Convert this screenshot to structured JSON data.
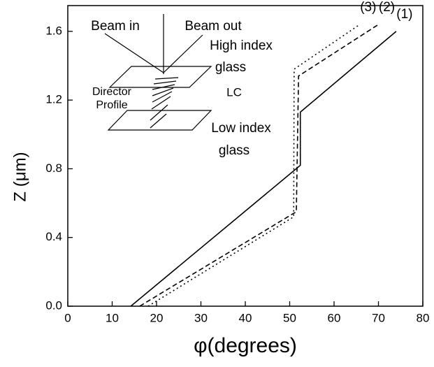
{
  "chart_data": {
    "type": "line",
    "xlabel": "φ(degrees)",
    "ylabel": "Z (μm)",
    "xlim": [
      0,
      80
    ],
    "ylim": [
      0,
      1.75
    ],
    "xticks": [
      0,
      10,
      20,
      30,
      40,
      50,
      60,
      70,
      80
    ],
    "yticks": [
      {
        "value": 0,
        "label": "0.0"
      },
      0.4,
      0.8,
      1.2,
      1.6
    ],
    "series": [
      {
        "name": "(1)",
        "color": "#000000",
        "dash": "solid",
        "x": [
          14.2,
          52.4,
          52.4,
          74.0
        ],
        "values": [
          0,
          0.82,
          1.13,
          1.6
        ]
      },
      {
        "name": "(2)",
        "color": "#000000",
        "dash": "dashed",
        "x": [
          16.2,
          51.5,
          52.0,
          70.0
        ],
        "values": [
          0,
          0.55,
          1.34,
          1.64
        ]
      },
      {
        "name": "(3)",
        "color": "#000000",
        "dash": "dotted",
        "x": [
          18.1,
          50.9,
          51.0,
          65.8
        ],
        "values": [
          0,
          0.52,
          1.38,
          1.64
        ]
      }
    ],
    "annotations": [
      "Beam in",
      "Beam out",
      "High index",
      "glass",
      "LC",
      "Director",
      "Profile",
      "Low index",
      "glass"
    ]
  }
}
